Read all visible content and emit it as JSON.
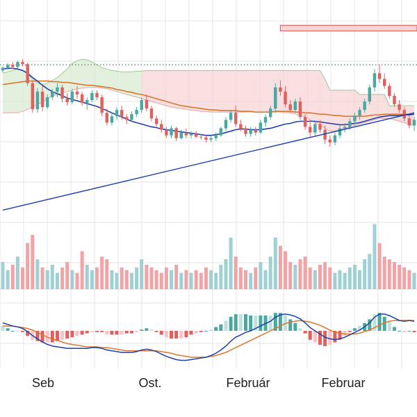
{
  "chart_data": {
    "type": "candlestick",
    "grid": true,
    "xtick_labels": [
      "Seb",
      "Ost.",
      "Február",
      "Februar"
    ],
    "colors": {
      "up": "#4aa8a0",
      "down": "#e0605f",
      "volume_up": "#9fd0d4",
      "volume_down": "#f2a3a6",
      "ma_fast": "#1f3fa8",
      "ma_slow": "#d9772e",
      "cloud_up": "#d8ebd2",
      "cloud_down": "#f7d4d4",
      "trendline": "#1f3fa8",
      "grid": "#e6e6e6",
      "reference_line": "#3a8a7a"
    },
    "candles": [
      [
        5.0,
        5.06,
        4.97,
        5.04
      ],
      [
        5.04,
        5.1,
        5.01,
        5.08
      ],
      [
        5.08,
        5.12,
        5.02,
        5.05
      ],
      [
        5.05,
        5.14,
        5.03,
        5.12
      ],
      [
        5.12,
        5.16,
        5.06,
        5.09
      ],
      [
        5.09,
        5.11,
        4.78,
        4.82
      ],
      [
        4.82,
        4.86,
        4.4,
        4.45
      ],
      [
        4.45,
        4.75,
        4.4,
        4.7
      ],
      [
        4.7,
        4.78,
        4.42,
        4.48
      ],
      [
        4.48,
        4.66,
        4.45,
        4.62
      ],
      [
        4.62,
        4.74,
        4.58,
        4.7
      ],
      [
        4.7,
        4.82,
        4.62,
        4.76
      ],
      [
        4.76,
        4.8,
        4.55,
        4.6
      ],
      [
        4.6,
        4.68,
        4.5,
        4.55
      ],
      [
        4.55,
        4.74,
        4.52,
        4.7
      ],
      [
        4.7,
        4.78,
        4.6,
        4.66
      ],
      [
        4.66,
        4.7,
        4.5,
        4.54
      ],
      [
        4.54,
        4.62,
        4.44,
        4.58
      ],
      [
        4.58,
        4.72,
        4.55,
        4.68
      ],
      [
        4.68,
        4.72,
        4.58,
        4.62
      ],
      [
        4.62,
        4.66,
        4.35,
        4.4
      ],
      [
        4.4,
        4.46,
        4.22,
        4.26
      ],
      [
        4.26,
        4.4,
        4.22,
        4.35
      ],
      [
        4.35,
        4.48,
        4.3,
        4.44
      ],
      [
        4.44,
        4.5,
        4.3,
        4.34
      ],
      [
        4.34,
        4.38,
        4.24,
        4.3
      ],
      [
        4.3,
        4.42,
        4.27,
        4.38
      ],
      [
        4.38,
        4.48,
        4.34,
        4.44
      ],
      [
        4.44,
        4.62,
        4.4,
        4.58
      ],
      [
        4.58,
        4.66,
        4.42,
        4.46
      ],
      [
        4.46,
        4.5,
        4.28,
        4.32
      ],
      [
        4.32,
        4.36,
        4.2,
        4.24
      ],
      [
        4.24,
        4.3,
        4.12,
        4.16
      ],
      [
        4.16,
        4.2,
        4.04,
        4.08
      ],
      [
        4.08,
        4.22,
        4.04,
        4.18
      ],
      [
        4.18,
        4.2,
        4.0,
        4.04
      ],
      [
        4.04,
        4.16,
        4.02,
        4.12
      ],
      [
        4.12,
        4.18,
        4.04,
        4.08
      ],
      [
        4.08,
        4.14,
        4.04,
        4.1
      ],
      [
        4.1,
        4.14,
        4.04,
        4.06
      ],
      [
        4.06,
        4.1,
        4.02,
        4.05
      ],
      [
        4.05,
        4.08,
        3.98,
        4.02
      ],
      [
        4.02,
        4.08,
        3.98,
        4.04
      ],
      [
        4.04,
        4.12,
        4.0,
        4.08
      ],
      [
        4.08,
        4.2,
        4.06,
        4.18
      ],
      [
        4.18,
        4.34,
        4.14,
        4.3
      ],
      [
        4.3,
        4.44,
        4.26,
        4.4
      ],
      [
        4.4,
        4.5,
        4.2,
        4.24
      ],
      [
        4.24,
        4.3,
        4.14,
        4.18
      ],
      [
        4.18,
        4.22,
        4.06,
        4.1
      ],
      [
        4.1,
        4.2,
        4.06,
        4.16
      ],
      [
        4.16,
        4.2,
        4.08,
        4.12
      ],
      [
        4.12,
        4.3,
        4.1,
        4.26
      ],
      [
        4.26,
        4.38,
        4.2,
        4.34
      ],
      [
        4.34,
        4.5,
        4.3,
        4.46
      ],
      [
        4.46,
        4.82,
        4.4,
        4.76
      ],
      [
        4.76,
        4.86,
        4.64,
        4.7
      ],
      [
        4.7,
        4.78,
        4.48,
        4.52
      ],
      [
        4.52,
        4.58,
        4.4,
        4.44
      ],
      [
        4.44,
        4.6,
        4.4,
        4.56
      ],
      [
        4.56,
        4.62,
        4.3,
        4.34
      ],
      [
        4.34,
        4.38,
        4.16,
        4.2
      ],
      [
        4.2,
        4.3,
        4.06,
        4.12
      ],
      [
        4.12,
        4.28,
        4.08,
        4.24
      ],
      [
        4.24,
        4.3,
        4.12,
        4.16
      ],
      [
        4.16,
        4.22,
        3.96,
        4.02
      ],
      [
        4.02,
        4.08,
        3.92,
        3.98
      ],
      [
        3.98,
        4.12,
        3.94,
        4.08
      ],
      [
        4.08,
        4.22,
        4.04,
        4.18
      ],
      [
        4.18,
        4.26,
        4.12,
        4.2
      ],
      [
        4.2,
        4.32,
        4.16,
        4.28
      ],
      [
        4.28,
        4.4,
        4.22,
        4.36
      ],
      [
        4.36,
        4.48,
        4.3,
        4.44
      ],
      [
        4.44,
        4.6,
        4.4,
        4.56
      ],
      [
        4.56,
        4.8,
        4.52,
        4.76
      ],
      [
        4.76,
        5.02,
        4.7,
        4.96
      ],
      [
        4.96,
        5.08,
        4.82,
        4.88
      ],
      [
        4.88,
        4.96,
        4.74,
        4.78
      ],
      [
        4.78,
        4.82,
        4.6,
        4.64
      ],
      [
        4.64,
        4.68,
        4.48,
        4.52
      ],
      [
        4.52,
        4.58,
        4.4,
        4.44
      ],
      [
        4.44,
        4.48,
        4.28,
        4.32
      ],
      [
        4.32,
        4.36,
        4.18,
        4.22
      ],
      [
        4.22,
        4.34,
        4.14,
        4.3
      ]
    ],
    "volume": [
      0.5,
      0.35,
      0.45,
      0.6,
      0.4,
      0.85,
      1.0,
      0.55,
      0.4,
      0.35,
      0.45,
      0.3,
      0.4,
      0.5,
      0.35,
      0.3,
      0.7,
      0.45,
      0.35,
      0.4,
      0.6,
      0.55,
      0.35,
      0.3,
      0.4,
      0.35,
      0.3,
      0.4,
      0.55,
      0.45,
      0.4,
      0.35,
      0.3,
      0.4,
      0.35,
      0.45,
      0.3,
      0.35,
      0.3,
      0.35,
      0.3,
      0.4,
      0.35,
      0.3,
      0.45,
      0.55,
      0.95,
      0.6,
      0.4,
      0.35,
      0.3,
      0.4,
      0.5,
      0.35,
      0.6,
      0.95,
      0.8,
      0.7,
      0.5,
      0.45,
      0.55,
      0.6,
      0.4,
      0.35,
      0.45,
      0.5,
      0.4,
      0.3,
      0.35,
      0.3,
      0.4,
      0.45,
      0.35,
      0.55,
      0.65,
      1.2,
      0.85,
      0.6,
      0.55,
      0.5,
      0.45,
      0.4,
      0.35,
      0.3
    ],
    "ma_fast": [
      5.02,
      5.03,
      5.03,
      5.02,
      5.0,
      4.96,
      4.9,
      4.85,
      4.79,
      4.74,
      4.7,
      4.67,
      4.64,
      4.61,
      4.59,
      4.57,
      4.55,
      4.53,
      4.51,
      4.49,
      4.46,
      4.43,
      4.4,
      4.37,
      4.34,
      4.31,
      4.28,
      4.26,
      4.24,
      4.22,
      4.2,
      4.19,
      4.17,
      4.16,
      4.15,
      4.14,
      4.13,
      4.12,
      4.11,
      4.1,
      4.09,
      4.08,
      4.08,
      4.09,
      4.1,
      4.12,
      4.14,
      4.16,
      4.17,
      4.17,
      4.16,
      4.16,
      4.16,
      4.17,
      4.18,
      4.2,
      4.22,
      4.24,
      4.25,
      4.27,
      4.28,
      4.28,
      4.28,
      4.28,
      4.27,
      4.26,
      4.25,
      4.24,
      4.23,
      4.23,
      4.24,
      4.25,
      4.26,
      4.28,
      4.3,
      4.32,
      4.34,
      4.35,
      4.36,
      4.36,
      4.36,
      4.37,
      4.37,
      4.38
    ],
    "ma_slow": [
      4.8,
      4.81,
      4.82,
      4.83,
      4.84,
      4.85,
      4.85,
      4.85,
      4.85,
      4.85,
      4.84,
      4.84,
      4.83,
      4.83,
      4.82,
      4.81,
      4.8,
      4.79,
      4.79,
      4.78,
      4.77,
      4.76,
      4.75,
      4.73,
      4.72,
      4.7,
      4.69,
      4.67,
      4.66,
      4.64,
      4.62,
      4.6,
      4.58,
      4.56,
      4.54,
      4.52,
      4.5,
      4.49,
      4.48,
      4.47,
      4.46,
      4.45,
      4.44,
      4.44,
      4.43,
      4.43,
      4.43,
      4.43,
      4.42,
      4.42,
      4.42,
      4.41,
      4.41,
      4.41,
      4.41,
      4.42,
      4.42,
      4.42,
      4.42,
      4.41,
      4.41,
      4.4,
      4.4,
      4.39,
      4.38,
      4.38,
      4.37,
      4.36,
      4.36,
      4.35,
      4.35,
      4.35,
      4.35,
      4.35,
      4.36,
      4.37,
      4.37,
      4.38,
      4.38,
      4.38,
      4.38,
      4.38,
      4.38,
      4.38
    ],
    "cloud_top": [
      4.96,
      4.98,
      5.0,
      5.02,
      5.0,
      4.95,
      4.88,
      4.82,
      4.8,
      4.82,
      4.86,
      4.9,
      4.96,
      5.02,
      5.1,
      5.14,
      5.16,
      5.15,
      5.12,
      5.08,
      5.04,
      5.02,
      5.0,
      4.99,
      4.98,
      4.98,
      4.98,
      4.99,
      4.99,
      5.0,
      5.0,
      5.0,
      5.0,
      5.0,
      5.0,
      5.0,
      5.0,
      5.0,
      5.0,
      5.0,
      5.0,
      5.0,
      5.0,
      5.0,
      5.0,
      5.0,
      5.0,
      5.0,
      5.0,
      5.0,
      5.0,
      5.0,
      5.0,
      5.0,
      5.0,
      5.0,
      5.0,
      5.0,
      5.0,
      5.0,
      5.0,
      5.0,
      5.0,
      5.0,
      5.0,
      4.88,
      4.72,
      4.72,
      4.72,
      4.72,
      4.72,
      4.72,
      4.66,
      4.66,
      4.66,
      4.66,
      4.66,
      4.66,
      4.5,
      4.5,
      4.5,
      4.5,
      4.5,
      4.5
    ],
    "cloud_bottom": [
      4.4,
      4.4,
      4.4,
      4.4,
      4.42,
      4.45,
      4.48,
      4.52,
      4.55,
      4.6,
      4.64,
      4.66,
      4.68,
      4.7,
      4.72,
      4.74,
      4.75,
      4.76,
      4.76,
      4.76,
      4.75,
      4.74,
      4.72,
      4.7,
      4.68,
      4.66,
      4.64,
      4.62,
      4.6,
      4.58,
      4.56,
      4.54,
      4.52,
      4.5,
      4.48,
      4.47,
      4.46,
      4.45,
      4.44,
      4.43,
      4.42,
      4.42,
      4.41,
      4.41,
      4.41,
      4.41,
      4.41,
      4.41,
      4.41,
      4.41,
      4.41,
      4.41,
      4.41,
      4.41,
      4.41,
      4.41,
      4.41,
      4.4,
      4.4,
      4.38,
      4.36,
      4.34,
      4.3,
      4.26,
      4.22,
      4.18,
      4.14,
      4.14,
      4.16,
      4.18,
      4.2,
      4.22,
      4.24,
      4.26,
      4.28,
      4.3,
      4.32,
      4.32,
      4.32,
      4.3,
      4.28,
      4.26,
      4.24,
      4.22
    ],
    "macd": [
      0.1,
      0.08,
      0.06,
      0.05,
      0.03,
      -0.01,
      -0.06,
      -0.1,
      -0.14,
      -0.17,
      -0.19,
      -0.2,
      -0.21,
      -0.22,
      -0.22,
      -0.22,
      -0.22,
      -0.22,
      -0.21,
      -0.21,
      -0.22,
      -0.24,
      -0.25,
      -0.26,
      -0.27,
      -0.27,
      -0.27,
      -0.26,
      -0.24,
      -0.23,
      -0.24,
      -0.26,
      -0.29,
      -0.32,
      -0.34,
      -0.36,
      -0.37,
      -0.37,
      -0.36,
      -0.35,
      -0.34,
      -0.33,
      -0.31,
      -0.28,
      -0.24,
      -0.19,
      -0.13,
      -0.08,
      -0.05,
      -0.02,
      0.0,
      0.03,
      0.06,
      0.09,
      0.12,
      0.17,
      0.2,
      0.21,
      0.2,
      0.18,
      0.15,
      0.1,
      0.04,
      0.0,
      -0.04,
      -0.08,
      -0.1,
      -0.11,
      -0.1,
      -0.08,
      -0.05,
      -0.02,
      0.01,
      0.05,
      0.1,
      0.17,
      0.21,
      0.21,
      0.19,
      0.16,
      0.13,
      0.12,
      0.13,
      0.12
    ],
    "macd_signal": [
      0.06,
      0.06,
      0.06,
      0.05,
      0.04,
      0.03,
      0.01,
      -0.02,
      -0.05,
      -0.08,
      -0.1,
      -0.12,
      -0.14,
      -0.16,
      -0.17,
      -0.18,
      -0.19,
      -0.2,
      -0.2,
      -0.2,
      -0.21,
      -0.21,
      -0.22,
      -0.23,
      -0.24,
      -0.25,
      -0.25,
      -0.25,
      -0.25,
      -0.25,
      -0.25,
      -0.25,
      -0.26,
      -0.27,
      -0.28,
      -0.3,
      -0.31,
      -0.32,
      -0.33,
      -0.33,
      -0.33,
      -0.33,
      -0.32,
      -0.31,
      -0.29,
      -0.27,
      -0.24,
      -0.21,
      -0.18,
      -0.15,
      -0.12,
      -0.09,
      -0.06,
      -0.03,
      0.0,
      0.03,
      0.06,
      0.09,
      0.11,
      0.12,
      0.13,
      0.12,
      0.11,
      0.09,
      0.07,
      0.04,
      0.01,
      -0.02,
      -0.03,
      -0.04,
      -0.04,
      -0.04,
      -0.03,
      -0.01,
      0.01,
      0.04,
      0.07,
      0.1,
      0.12,
      0.13,
      0.13,
      0.13,
      0.13,
      0.13
    ],
    "horizontal_reference": 5.08,
    "resistance_zone": {
      "from_candle": 56,
      "to_candle": 83,
      "low": 5.56,
      "high": 5.64
    },
    "trendline": {
      "from_candle": 0,
      "from_value": 3.02,
      "to_candle": 83,
      "to_value": 4.4
    }
  }
}
